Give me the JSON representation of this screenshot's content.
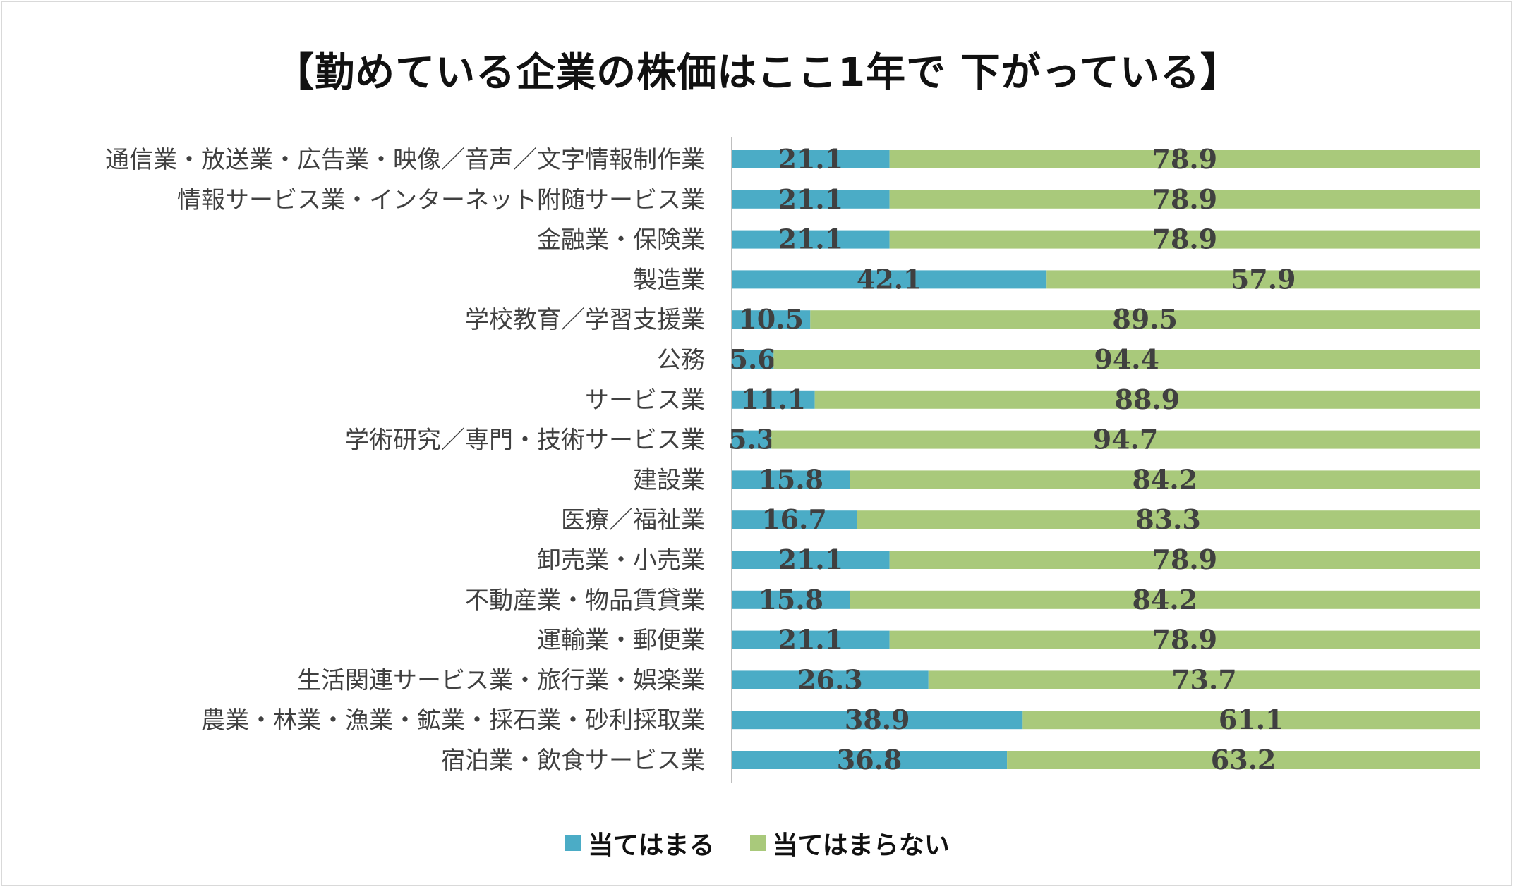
{
  "chart_data": {
    "type": "bar",
    "orientation": "horizontal",
    "stacked": true,
    "title": "【勤めている企業の株価はここ1年で 下がっている】",
    "categories": [
      "通信業・放送業・広告業・映像／音声／文字情報制作業",
      "情報サービス業・インターネット附随サービス業",
      "金融業・保険業",
      "製造業",
      "学校教育／学習支援業",
      "公務",
      "サービス業",
      "学術研究／専門・技術サービス業",
      "建設業",
      "医療／福祉業",
      "卸売業・小売業",
      "不動産業・物品賃貸業",
      "運輸業・郵便業",
      "生活関連サービス業・旅行業・娯楽業",
      "農業・林業・漁業・鉱業・採石業・砂利採取業",
      "宿泊業・飲食サービス業"
    ],
    "series": [
      {
        "name": "当てはまる",
        "color": "#4bacc6",
        "values": [
          21.1,
          21.1,
          21.1,
          42.1,
          10.5,
          5.6,
          11.1,
          5.3,
          15.8,
          16.7,
          21.1,
          15.8,
          21.1,
          26.3,
          38.9,
          36.8
        ]
      },
      {
        "name": "当てはまらない",
        "color": "#a9c97b",
        "values": [
          78.9,
          78.9,
          78.9,
          57.9,
          89.5,
          94.4,
          88.9,
          94.7,
          84.2,
          83.3,
          78.9,
          84.2,
          78.9,
          73.7,
          61.1,
          63.2
        ]
      }
    ],
    "xlim": [
      0,
      100
    ],
    "legend_position": "bottom"
  }
}
